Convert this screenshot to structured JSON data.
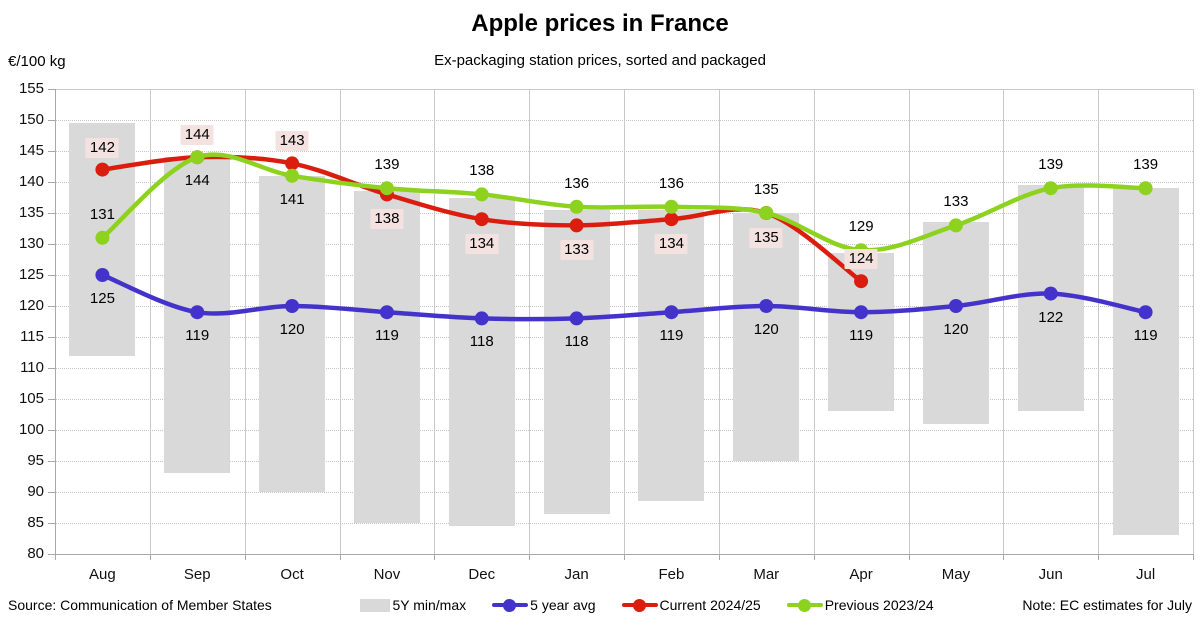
{
  "header": {
    "title": "Apple prices in France",
    "subtitle": "Ex-packaging station prices, sorted and packaged",
    "unit_label": "€/100 kg"
  },
  "footer": {
    "source": "Source: Communication of Member States",
    "note": "Note: EC estimates for July"
  },
  "legend": {
    "items": [
      {
        "label": "5Y min/max",
        "marker": "gray-rect"
      },
      {
        "label": "5 year avg",
        "marker": "blue-line-dot"
      },
      {
        "label": "Current 2024/25",
        "marker": "red-line-dot"
      },
      {
        "label": "Previous 2023/24",
        "marker": "green-line-dot"
      }
    ]
  },
  "chart_data": {
    "type": "line",
    "title": "Apple prices in France",
    "subtitle": "Ex-packaging station prices, sorted and packaged",
    "ylabel": "€/100 kg",
    "categories": [
      "Aug",
      "Sep",
      "Oct",
      "Nov",
      "Dec",
      "Jan",
      "Feb",
      "Mar",
      "Apr",
      "May",
      "Jun",
      "Jul"
    ],
    "y_axis": {
      "min": 80,
      "max": 155,
      "step": 5
    },
    "grid": true,
    "legend_position": "bottom",
    "series": [
      {
        "name": "5Y min/max",
        "type": "range_bar",
        "color": "#d9d9d9",
        "ranges": [
          [
            112,
            149.5
          ],
          [
            93,
            144
          ],
          [
            90,
            141
          ],
          [
            85,
            138.5
          ],
          [
            84.5,
            137.5
          ],
          [
            86.5,
            135.5
          ],
          [
            88.5,
            135.5
          ],
          [
            95,
            135
          ],
          [
            103,
            128.5
          ],
          [
            101,
            133.5
          ],
          [
            103,
            139.5
          ],
          [
            83,
            139
          ]
        ]
      },
      {
        "name": "5 year avg",
        "type": "line",
        "color": "#4433cb",
        "values": [
          125,
          119,
          120,
          119,
          118,
          118,
          119,
          120,
          119,
          120,
          122,
          119
        ],
        "label_positions": [
          "below",
          "below",
          "below",
          "below",
          "below",
          "below",
          "below",
          "below",
          "below",
          "below",
          "below",
          "below"
        ]
      },
      {
        "name": "Current 2024/25",
        "type": "line",
        "color": "#db1d0f",
        "label_bg": "#f4e2e1",
        "values": [
          142,
          144,
          143,
          138,
          134,
          133,
          134,
          135,
          124,
          null,
          null,
          null
        ],
        "label_positions": [
          "above",
          "above",
          "above",
          "below",
          "below",
          "below",
          "below",
          "below",
          "above",
          null,
          null,
          null
        ]
      },
      {
        "name": "Previous 2023/24",
        "type": "line",
        "color": "#8dd21e",
        "values": [
          131,
          144,
          141,
          139,
          138,
          136,
          136,
          135,
          129,
          133,
          139,
          139
        ],
        "label_positions": [
          "above",
          "below",
          "below",
          "above",
          "above",
          "above",
          "above",
          "above",
          "above",
          "above",
          "above",
          "above"
        ]
      }
    ]
  }
}
